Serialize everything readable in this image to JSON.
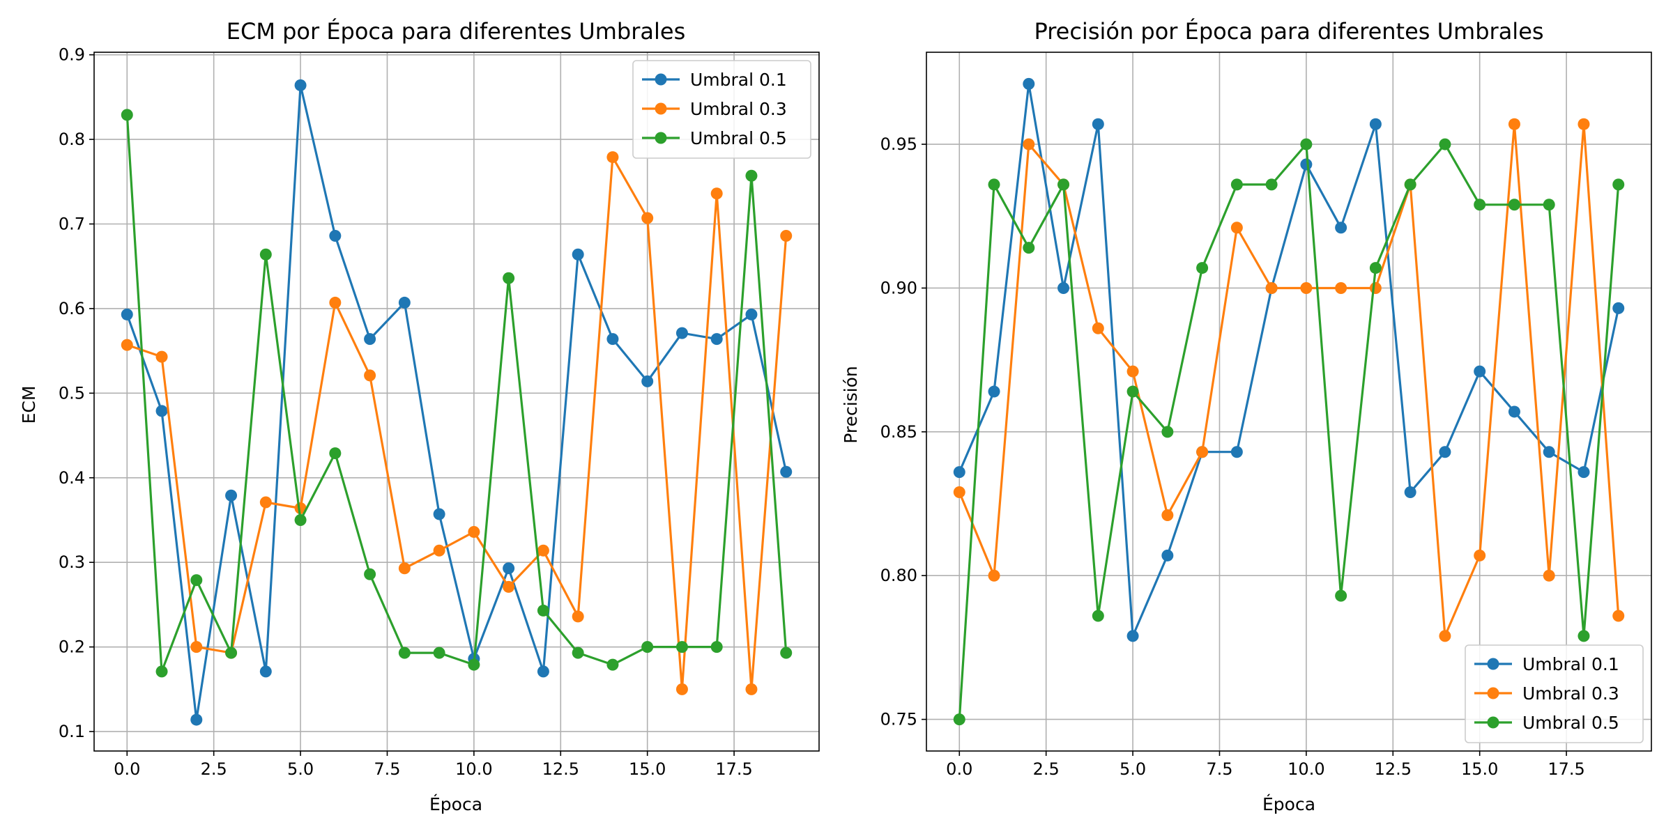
{
  "chart_data": [
    {
      "type": "line",
      "title": "ECM por Época para diferentes Umbrales",
      "xlabel": "Época",
      "ylabel": "ECM",
      "grid": true,
      "legend_position": "upper right",
      "xlim": [
        -0.95,
        19.95
      ],
      "ylim": [
        0.077,
        0.903
      ],
      "xticks": [
        0,
        2.5,
        5,
        7.5,
        10,
        12.5,
        15,
        17.5
      ],
      "xtick_labels": [
        "0.0",
        "2.5",
        "5.0",
        "7.5",
        "10.0",
        "12.5",
        "15.0",
        "17.5"
      ],
      "yticks": [
        0.1,
        0.2,
        0.3,
        0.4,
        0.5,
        0.6,
        0.7,
        0.8,
        0.9
      ],
      "ytick_labels": [
        "0.1",
        "0.2",
        "0.3",
        "0.4",
        "0.5",
        "0.6",
        "0.7",
        "0.8",
        "0.9"
      ],
      "x": [
        0,
        1,
        2,
        3,
        4,
        5,
        6,
        7,
        8,
        9,
        10,
        11,
        12,
        13,
        14,
        15,
        16,
        17,
        18,
        19
      ],
      "series": [
        {
          "name": "Umbral 0.1",
          "color": "#1f77b4",
          "values": [
            0.593,
            0.479,
            0.114,
            0.379,
            0.171,
            0.864,
            0.686,
            0.564,
            0.607,
            0.357,
            0.186,
            0.293,
            0.171,
            0.664,
            0.564,
            0.514,
            0.571,
            0.564,
            0.593,
            0.407
          ]
        },
        {
          "name": "Umbral 0.3",
          "color": "#ff7f0e",
          "values": [
            0.557,
            0.543,
            0.2,
            0.193,
            0.371,
            0.364,
            0.607,
            0.521,
            0.293,
            0.314,
            0.336,
            0.271,
            0.314,
            0.236,
            0.779,
            0.707,
            0.15,
            0.736,
            0.15,
            0.686
          ]
        },
        {
          "name": "Umbral 0.5",
          "color": "#2ca02c",
          "values": [
            0.829,
            0.171,
            0.279,
            0.193,
            0.664,
            0.35,
            0.429,
            0.286,
            0.193,
            0.193,
            0.179,
            0.636,
            0.243,
            0.193,
            0.179,
            0.2,
            0.2,
            0.2,
            0.757,
            0.193
          ]
        }
      ]
    },
    {
      "type": "line",
      "title": "Precisión por Época para diferentes Umbrales",
      "xlabel": "Época",
      "ylabel": "Precisión",
      "grid": true,
      "legend_position": "lower right",
      "xlim": [
        -0.95,
        19.95
      ],
      "ylim": [
        0.739,
        0.982
      ],
      "xticks": [
        0,
        2.5,
        5,
        7.5,
        10,
        12.5,
        15,
        17.5
      ],
      "xtick_labels": [
        "0.0",
        "2.5",
        "5.0",
        "7.5",
        "10.0",
        "12.5",
        "15.0",
        "17.5"
      ],
      "yticks": [
        0.75,
        0.8,
        0.85,
        0.9,
        0.95
      ],
      "ytick_labels": [
        "0.75",
        "0.80",
        "0.85",
        "0.90",
        "0.95"
      ],
      "x": [
        0,
        1,
        2,
        3,
        4,
        5,
        6,
        7,
        8,
        9,
        10,
        11,
        12,
        13,
        14,
        15,
        16,
        17,
        18,
        19
      ],
      "series": [
        {
          "name": "Umbral 0.1",
          "color": "#1f77b4",
          "values": [
            0.836,
            0.864,
            0.971,
            0.9,
            0.957,
            0.779,
            0.807,
            0.843,
            0.843,
            0.9,
            0.943,
            0.921,
            0.957,
            0.829,
            0.843,
            0.871,
            0.857,
            0.843,
            0.836,
            0.893
          ]
        },
        {
          "name": "Umbral 0.3",
          "color": "#ff7f0e",
          "values": [
            0.829,
            0.8,
            0.95,
            0.936,
            0.886,
            0.871,
            0.821,
            0.843,
            0.921,
            0.9,
            0.9,
            0.9,
            0.9,
            0.936,
            0.779,
            0.807,
            0.957,
            0.8,
            0.957,
            0.786
          ]
        },
        {
          "name": "Umbral 0.5",
          "color": "#2ca02c",
          "values": [
            0.75,
            0.936,
            0.914,
            0.936,
            0.786,
            0.864,
            0.85,
            0.907,
            0.936,
            0.936,
            0.95,
            0.793,
            0.907,
            0.936,
            0.95,
            0.929,
            0.929,
            0.929,
            0.779,
            0.936
          ]
        }
      ]
    }
  ]
}
